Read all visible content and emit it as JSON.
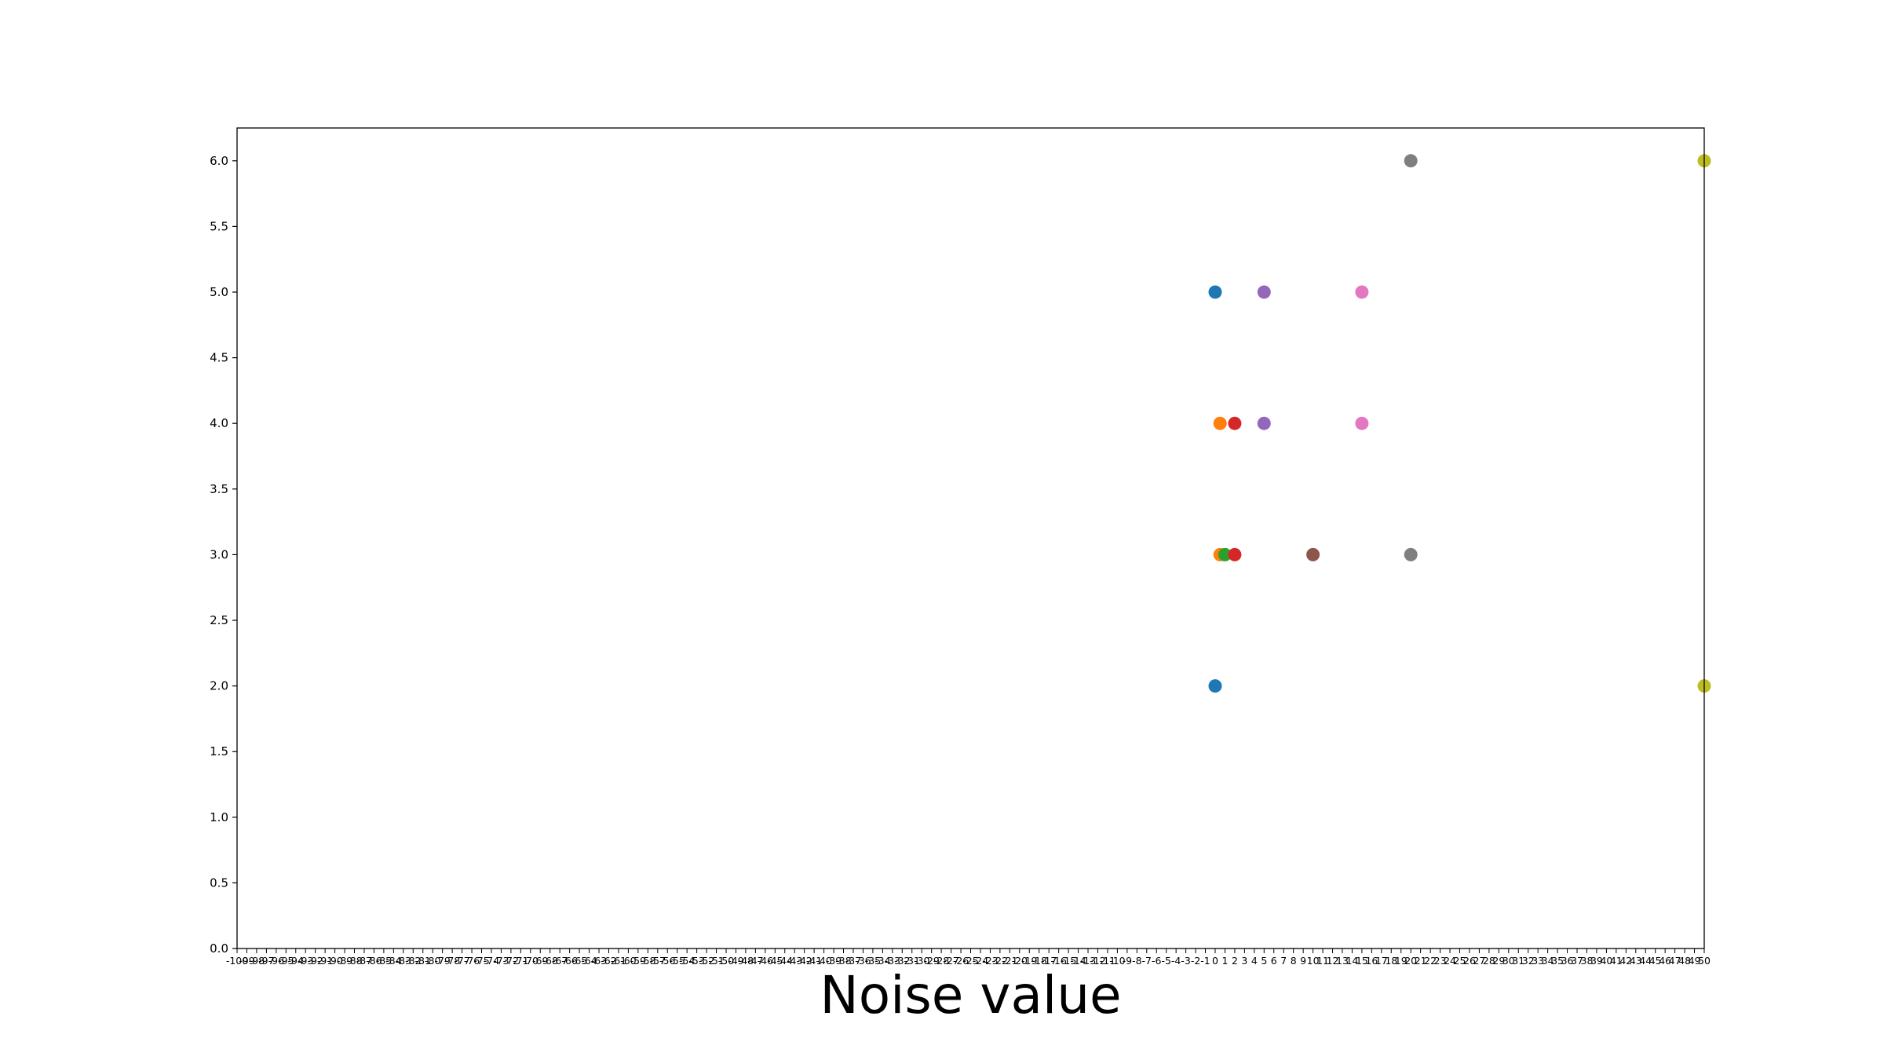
{
  "chart_data": {
    "type": "scatter",
    "title": "",
    "xlabel": "Noise value",
    "ylabel": "",
    "xlim": [
      -100,
      50
    ],
    "ylim": [
      0,
      6.25
    ],
    "x_ticks": [
      -100,
      -99,
      -98,
      -97,
      -96,
      -95,
      -94,
      -93,
      -92,
      -91,
      -90,
      -89,
      -88,
      -87,
      -86,
      -85,
      -84,
      -83,
      -82,
      -81,
      -80,
      -79,
      -78,
      -77,
      -76,
      -75,
      -74,
      -73,
      -72,
      -71,
      -70,
      -69,
      -68,
      -67,
      -66,
      -65,
      -64,
      -63,
      -62,
      -61,
      -60,
      -59,
      -58,
      -57,
      -56,
      -55,
      -54,
      -53,
      -52,
      -51,
      -50,
      -49,
      -48,
      -47,
      -46,
      -45,
      -44,
      -43,
      -42,
      -41,
      -40,
      -39,
      -38,
      -37,
      -36,
      -35,
      -34,
      -33,
      -32,
      -31,
      -30,
      -29,
      -28,
      -27,
      -26,
      -25,
      -24,
      -23,
      -22,
      -21,
      -20,
      -19,
      -18,
      -17,
      -16,
      -15,
      -14,
      -13,
      -12,
      -11,
      -10,
      -9,
      -8,
      -7,
      -6,
      -5,
      -4,
      -3,
      -2,
      -1,
      0,
      1,
      2,
      3,
      4,
      5,
      6,
      7,
      8,
      9,
      10,
      11,
      12,
      13,
      14,
      15,
      16,
      17,
      18,
      19,
      20,
      21,
      22,
      23,
      24,
      25,
      26,
      27,
      28,
      29,
      30,
      31,
      32,
      33,
      34,
      35,
      36,
      37,
      38,
      39,
      40,
      41,
      42,
      43,
      44,
      45,
      46,
      47,
      48,
      49,
      50
    ],
    "y_ticks": [
      "0.0",
      "0.5",
      "1.0",
      "1.5",
      "2.0",
      "2.5",
      "3.0",
      "3.5",
      "4.0",
      "4.5",
      "5.0",
      "5.5",
      "6.0"
    ],
    "grid": false,
    "legend": "none",
    "series": [
      {
        "color": "#1f77b4",
        "points": [
          [
            0,
            5
          ],
          [
            0,
            2
          ]
        ]
      },
      {
        "color": "#ff7f0e",
        "points": [
          [
            0.5,
            4
          ],
          [
            0.5,
            3
          ]
        ]
      },
      {
        "color": "#2ca02c",
        "points": [
          [
            1,
            3
          ]
        ]
      },
      {
        "color": "#d62728",
        "points": [
          [
            2,
            4
          ],
          [
            2,
            3
          ]
        ]
      },
      {
        "color": "#9467bd",
        "points": [
          [
            5,
            5
          ],
          [
            5,
            4
          ]
        ]
      },
      {
        "color": "#8c564b",
        "points": [
          [
            10,
            3
          ]
        ]
      },
      {
        "color": "#e377c2",
        "points": [
          [
            15,
            5
          ],
          [
            15,
            4
          ]
        ]
      },
      {
        "color": "#7f7f7f",
        "points": [
          [
            20,
            6
          ],
          [
            20,
            3
          ]
        ]
      },
      {
        "color": "#bcbd22",
        "points": [
          [
            50,
            6
          ],
          [
            50,
            2
          ]
        ]
      }
    ]
  }
}
